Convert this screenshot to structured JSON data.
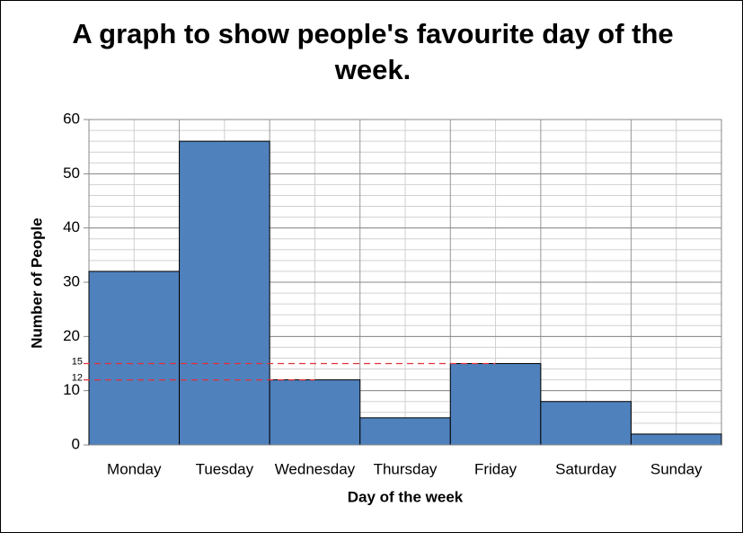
{
  "chart_data": {
    "type": "bar",
    "title": "A graph to show people's favourite day of the week.",
    "x_label": "Day of the week",
    "y_label": "Number of People",
    "categories": [
      "Monday",
      "Tuesday",
      "Wednesday",
      "Thursday",
      "Friday",
      "Saturday",
      "Sunday"
    ],
    "values": [
      32,
      56,
      12,
      5,
      15,
      8,
      2
    ],
    "color": "#4f81bd",
    "ylim": [
      0,
      60
    ],
    "yticks": [
      0,
      10,
      20,
      30,
      40,
      50,
      60
    ],
    "grid": true,
    "y_minor_step": 2,
    "reference_lines": [
      15,
      12
    ],
    "reference_color": "#e0303a"
  }
}
